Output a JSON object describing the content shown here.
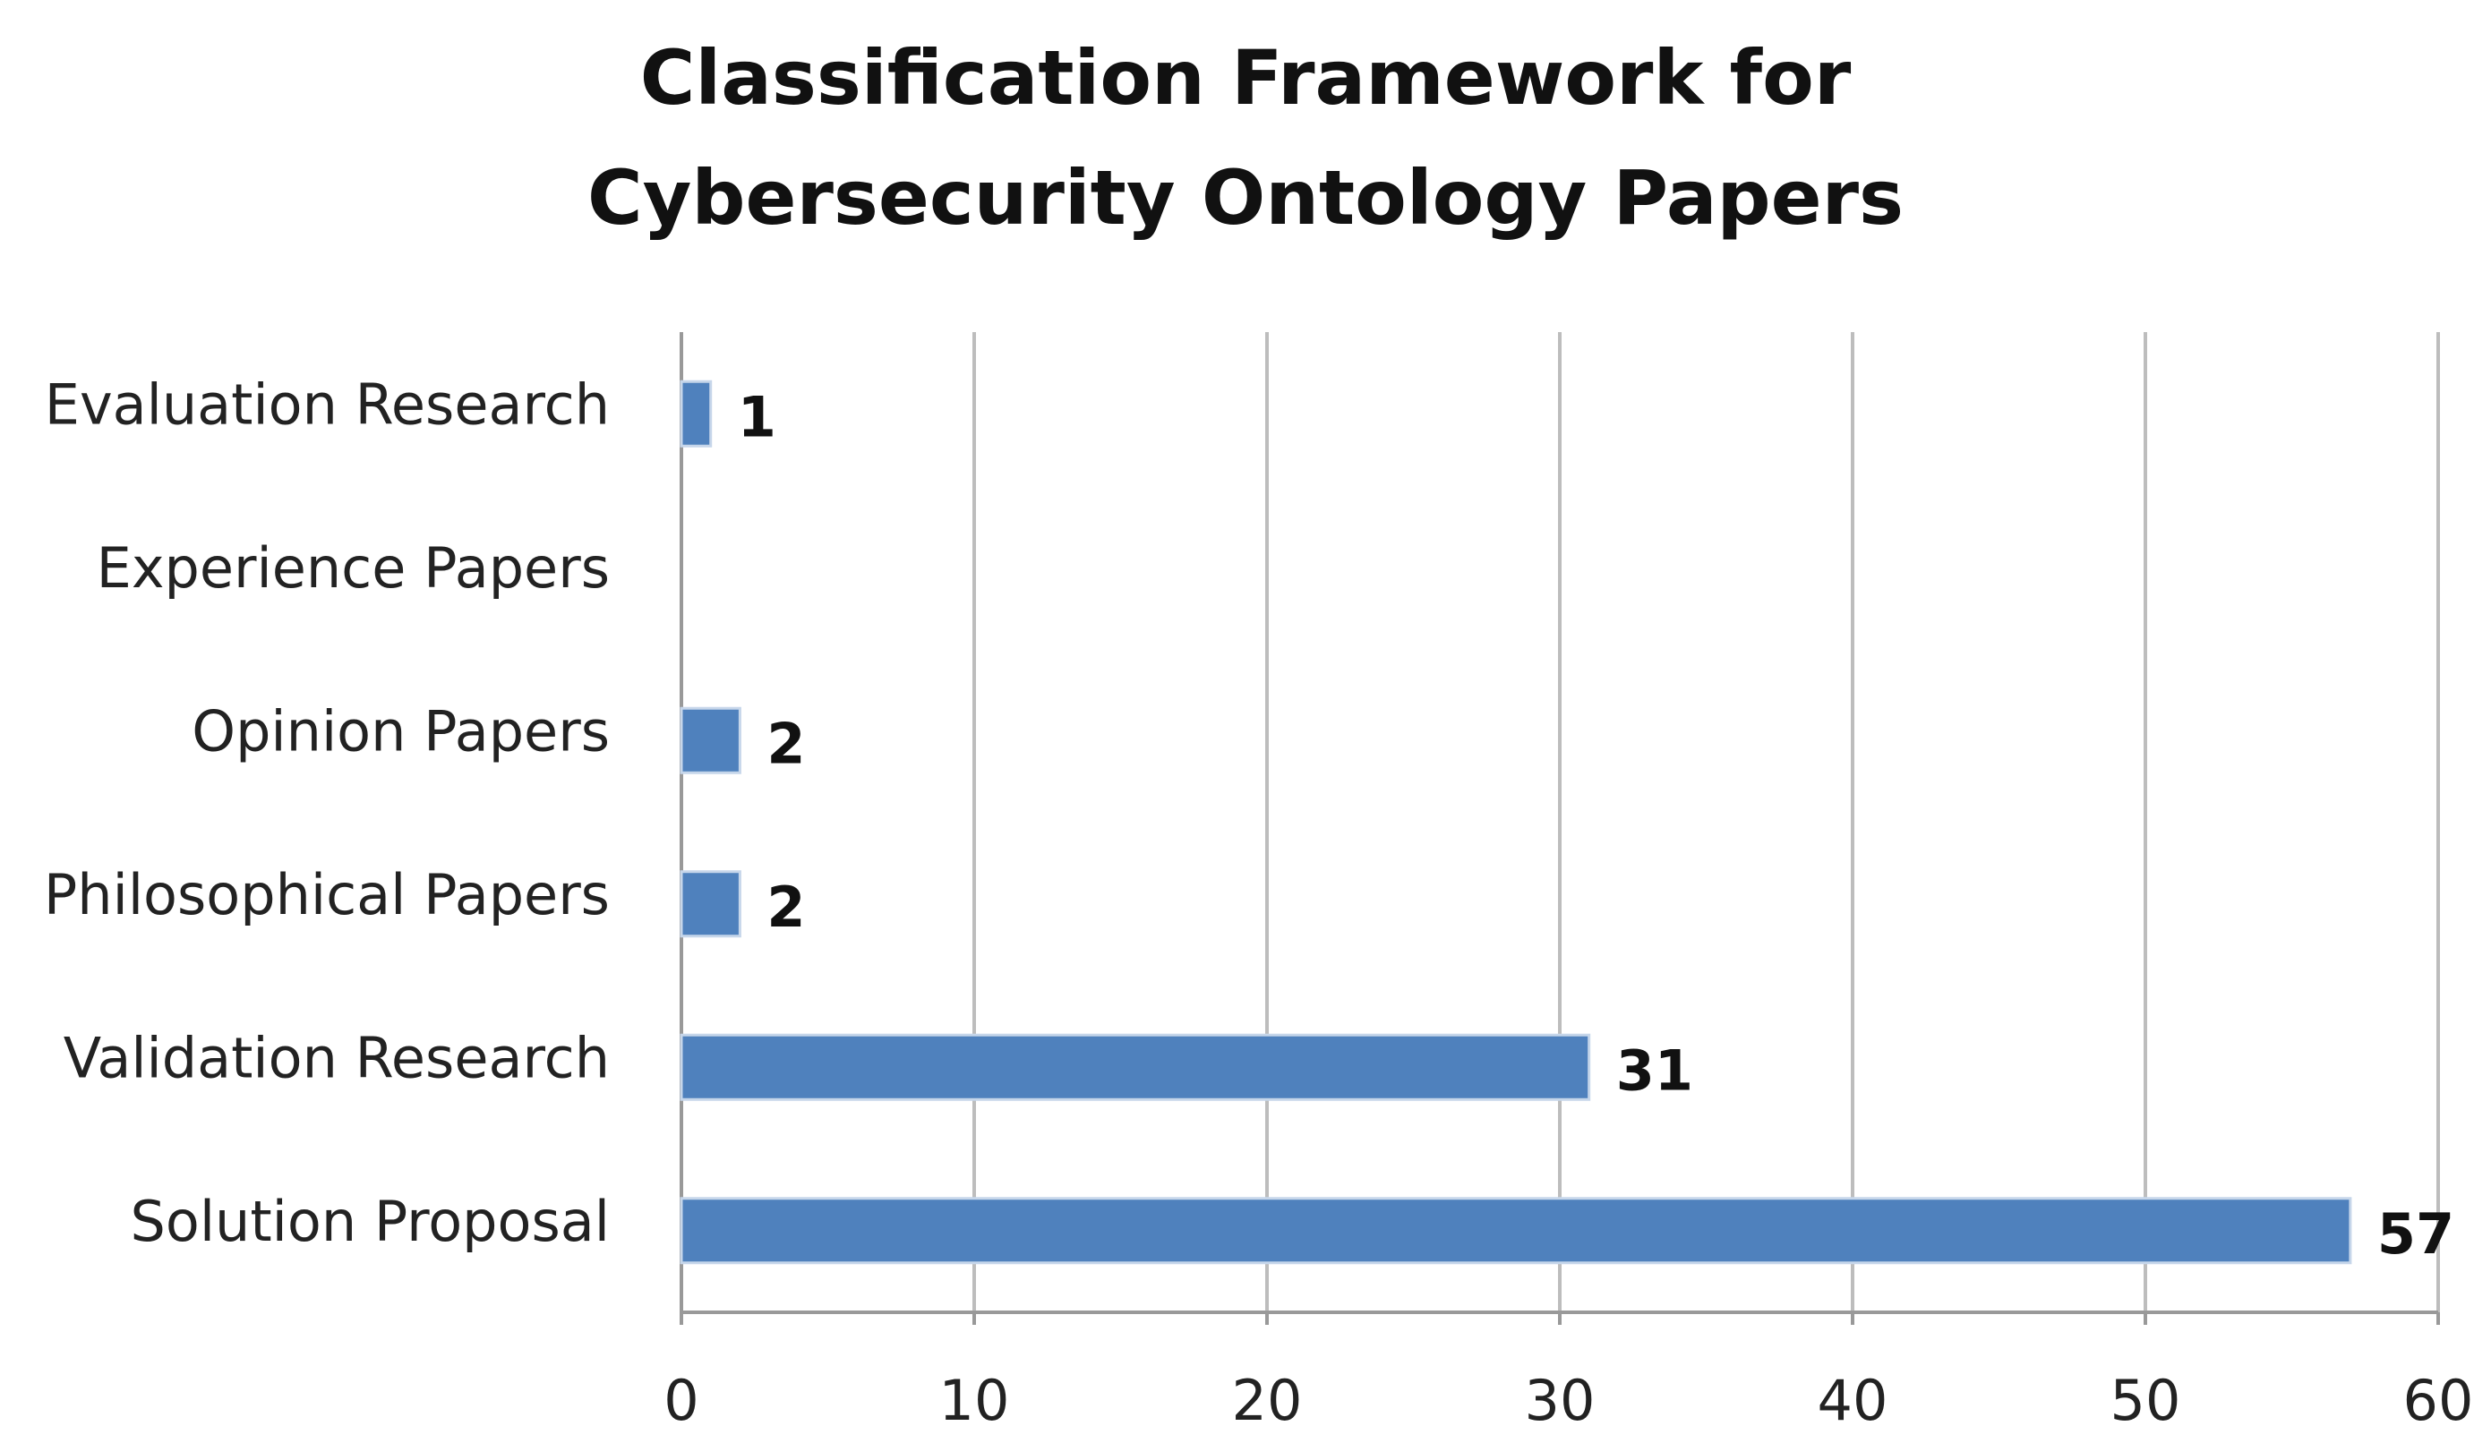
{
  "chart_data": {
    "type": "bar",
    "orientation": "horizontal",
    "title": "Classification Framework for Cybersecurity Ontology Papers",
    "categories": [
      "Evaluation Research",
      "Experience Papers",
      "Opinion Papers",
      "Philosophical Papers",
      "Validation Research",
      "Solution Proposal"
    ],
    "values": [
      1,
      null,
      2,
      2,
      31,
      57
    ],
    "color": "#4f81bd",
    "xlim": [
      0,
      60
    ],
    "xticks": [
      0,
      10,
      20,
      30,
      40,
      50,
      60
    ],
    "grid": true
  }
}
